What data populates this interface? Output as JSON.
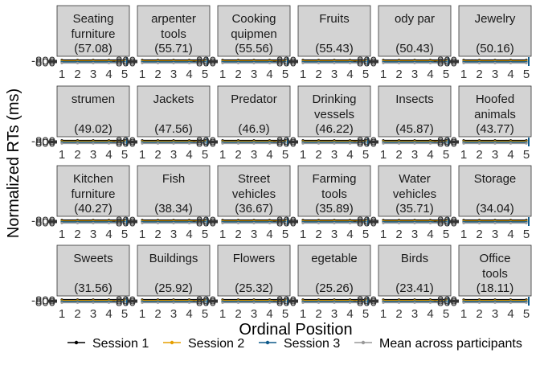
{
  "chart_data": {
    "type": "line",
    "xlabel": "Ordinal Position",
    "ylabel": "Normalized RTs (ms)",
    "x": [
      1,
      2,
      3,
      4,
      5
    ],
    "x_tick_labels": [
      "1",
      "2",
      "3",
      "4",
      "5"
    ],
    "y_tick_labels": [
      "-800",
      "800"
    ],
    "ylim": [
      -800,
      800
    ],
    "facet_grid": {
      "rows": 4,
      "cols": 6
    },
    "legend": {
      "position": "bottom",
      "entries": [
        {
          "name": "Session 1",
          "color": "#000000"
        },
        {
          "name": "Session 2",
          "color": "#E69F00"
        },
        {
          "name": "Session 3",
          "color": "#0E5A8A"
        },
        {
          "name": "Mean across participants",
          "color": "#999999"
        }
      ]
    },
    "panels": [
      {
        "label": [
          "Seating",
          "furniture",
          "(57.08)"
        ]
      },
      {
        "label": [
          "arpenter",
          "tools",
          "(55.71)"
        ]
      },
      {
        "label": [
          "Cooking",
          "quipmen",
          "(55.56)"
        ]
      },
      {
        "label": [
          "Fruits",
          "",
          "(55.43)"
        ]
      },
      {
        "label": [
          "ody par",
          "",
          "(50.43)"
        ]
      },
      {
        "label": [
          "Jewelry",
          "",
          "(50.16)"
        ]
      },
      {
        "label": [
          "strumen",
          "",
          "(49.02)"
        ]
      },
      {
        "label": [
          "Jackets",
          "",
          "(47.56)"
        ]
      },
      {
        "label": [
          "Predator",
          "",
          "(46.9)"
        ]
      },
      {
        "label": [
          "Drinking",
          "vessels",
          "(46.22)"
        ]
      },
      {
        "label": [
          "Insects",
          "",
          "(45.87)"
        ]
      },
      {
        "label": [
          "Hoofed",
          "animals",
          "(43.77)"
        ]
      },
      {
        "label": [
          "Kitchen",
          "furniture",
          "(40.27)"
        ]
      },
      {
        "label": [
          "Fish",
          "",
          "(38.34)"
        ]
      },
      {
        "label": [
          "Street",
          "vehicles",
          "(36.67)"
        ]
      },
      {
        "label": [
          "Farming",
          "tools",
          "(35.89)"
        ]
      },
      {
        "label": [
          "Water",
          "vehicles",
          "(35.71)"
        ]
      },
      {
        "label": [
          "Storage",
          "",
          "(34.04)"
        ]
      },
      {
        "label": [
          "Sweets",
          "",
          "(31.56)"
        ]
      },
      {
        "label": [
          "Buildings",
          "",
          "(25.92)"
        ]
      },
      {
        "label": [
          "Flowers",
          "",
          "(25.32)"
        ]
      },
      {
        "label": [
          "egetable",
          "",
          "(25.26)"
        ]
      },
      {
        "label": [
          "Birds",
          "",
          "(23.41)"
        ]
      },
      {
        "label": [
          "Office",
          "tools",
          "(18.11)"
        ]
      }
    ],
    "series": [
      {
        "name": "Session 1",
        "values": [
          0,
          0,
          0,
          0,
          0
        ]
      },
      {
        "name": "Session 2",
        "values": [
          0,
          0,
          0,
          0,
          0
        ]
      },
      {
        "name": "Session 3",
        "values": [
          0,
          0,
          0,
          0,
          0
        ]
      },
      {
        "name": "Mean across participants",
        "values": [
          0,
          0,
          0,
          0,
          0
        ]
      }
    ]
  }
}
